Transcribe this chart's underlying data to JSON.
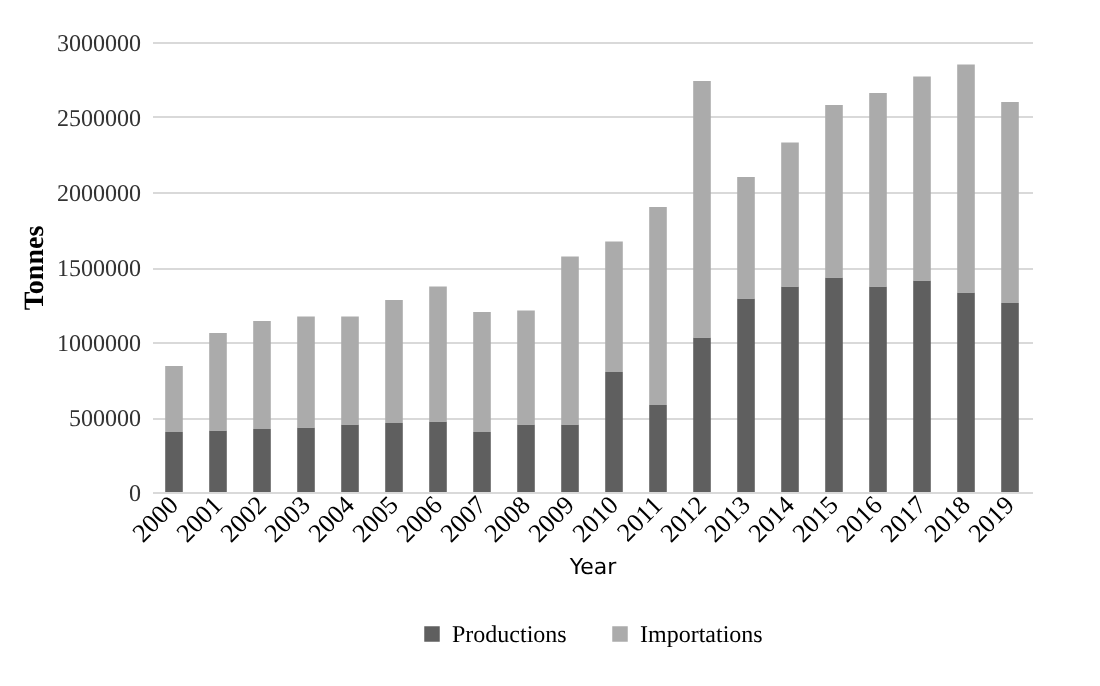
{
  "chart_data": {
    "type": "bar",
    "stacked": true,
    "xlabel": "Year",
    "ylabel": "Tonnes",
    "categories": [
      "2000",
      "2001",
      "2002",
      "2003",
      "2004",
      "2005",
      "2006",
      "2007",
      "2008",
      "2009",
      "2010",
      "2011",
      "2012",
      "2013",
      "2014",
      "2015",
      "2016",
      "2017",
      "2018",
      "2019"
    ],
    "series": [
      {
        "name": "Productions",
        "color": "#5f5f5f",
        "values": [
          400000,
          410000,
          420000,
          430000,
          450000,
          460000,
          470000,
          400000,
          450000,
          450000,
          800000,
          580000,
          1030000,
          1290000,
          1370000,
          1430000,
          1370000,
          1410000,
          1330000,
          1260000
        ]
      },
      {
        "name": "Importations",
        "color": "#ababab",
        "values": [
          440000,
          650000,
          720000,
          740000,
          720000,
          820000,
          900000,
          800000,
          760000,
          1120000,
          870000,
          1320000,
          1710000,
          810000,
          960000,
          1150000,
          1290000,
          1360000,
          1520000,
          1340000
        ]
      }
    ],
    "ylim": [
      0,
      3000000
    ],
    "yticks": [
      0,
      500000,
      1000000,
      1500000,
      2000000,
      2500000,
      3000000
    ],
    "grid": "y",
    "legend": "bottom"
  }
}
